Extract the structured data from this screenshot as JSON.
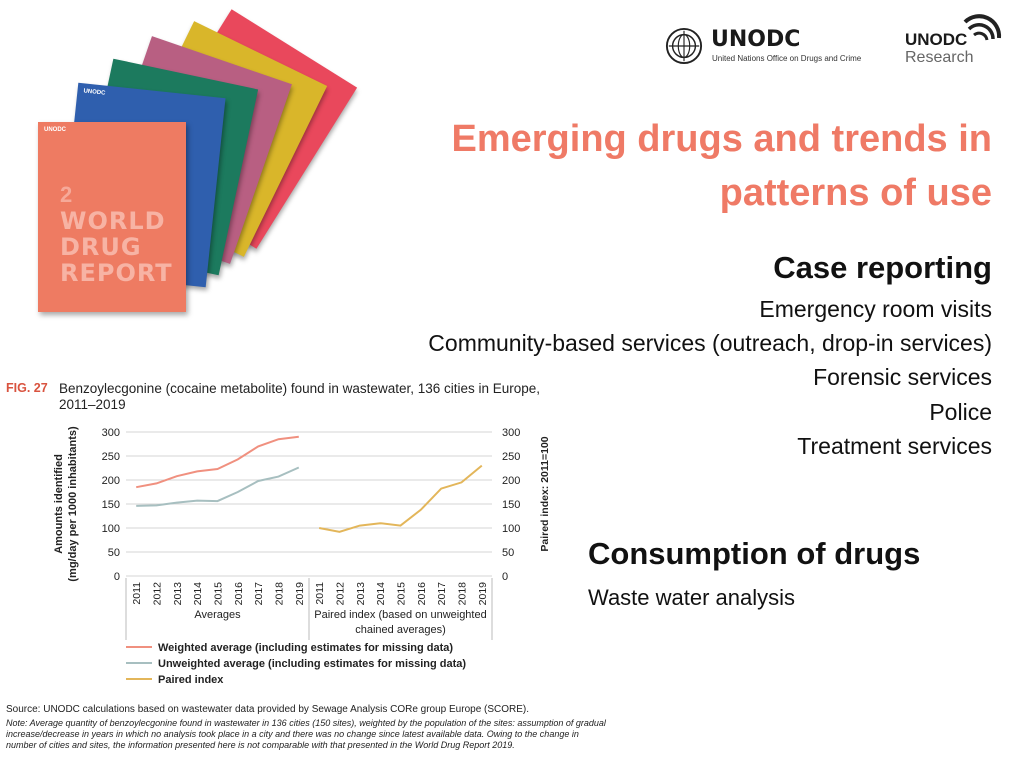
{
  "covers": {
    "tab_label": "UNODC",
    "front": {
      "number": "2",
      "lines": [
        "WORLD",
        "DRUG",
        "REPORT"
      ]
    },
    "colors": [
      "#e9485c",
      "#d9b62a",
      "#b85f82",
      "#1c7a5e",
      "#2f5fae",
      "#ee7b62"
    ]
  },
  "logos": {
    "unodc": {
      "name": "UNODC",
      "subtitle": "United Nations Office on Drugs and Crime",
      "icon": "un-emblem-icon"
    },
    "research": {
      "top": "UNODC",
      "bottom": "Research",
      "icon": "research-arc-icon"
    }
  },
  "title": {
    "line1": "Emerging drugs and trends in",
    "line2": "patterns of use"
  },
  "case_reporting": {
    "heading": "Case reporting",
    "items": [
      "Emergency room visits",
      "Community-based services (outreach, drop-in services)",
      "Forensic services",
      "Police",
      "Treatment services"
    ]
  },
  "consumption": {
    "heading": "Consumption of drugs",
    "sub": "Waste water analysis"
  },
  "figure": {
    "label": "FIG. 27",
    "caption": "Benzoylecgonine (cocaine metabolite) found in wastewater, 136 cities in Europe, 2011–2019",
    "source": "Source: UNODC calculations based on wastewater data provided by Sewage Analysis CORe group Europe (SCORE).",
    "note": "Note: Average quantity of benzoylecgonine found in wastewater in 136 cities (150 sites), weighted by the population of the sites: assumption of gradual increase/decrease in years in which no analysis took place in a city and there was no change since latest available data. Owing to the change in number of cities and sites, the information presented here is not comparable with that presented in the World Drug Report 2019."
  },
  "chart_data": {
    "type": "line",
    "left_axis": {
      "label_line1": "Amounts identified",
      "label_line2": "(mg/day per 1000 inhabitants)",
      "ylim": [
        0,
        300
      ],
      "ticks": [
        0,
        50,
        100,
        150,
        200,
        250,
        300
      ]
    },
    "right_axis": {
      "label": "Paired index: 2011=100",
      "ylim": [
        0,
        300
      ],
      "ticks": [
        0,
        50,
        100,
        150,
        200,
        250,
        300
      ]
    },
    "groups": [
      {
        "label": "Averages",
        "categories": [
          "2011",
          "2012",
          "2013",
          "2014",
          "2015",
          "2016",
          "2017",
          "2018",
          "2019"
        ]
      },
      {
        "label_line1": "Paired index (based on unweighted",
        "label_line2": "chained averages)",
        "categories": [
          "2011",
          "2012",
          "2013",
          "2014",
          "2015",
          "2016",
          "2017",
          "2018",
          "2019"
        ]
      }
    ],
    "series": [
      {
        "name": "Weighted average (including estimates for missing data)",
        "group": 0,
        "color": "#f0907f",
        "values": [
          185,
          193,
          208,
          218,
          223,
          243,
          270,
          285,
          290
        ]
      },
      {
        "name": "Unweighted average (including estimates for missing data)",
        "group": 0,
        "color": "#a7bfc0",
        "values": [
          146,
          147,
          153,
          157,
          156,
          175,
          198,
          207,
          226
        ]
      },
      {
        "name": "Paired index",
        "group": 1,
        "color": "#e3b65a",
        "values": [
          100,
          92,
          105,
          110,
          105,
          138,
          182,
          195,
          230
        ]
      }
    ],
    "grid": true,
    "legend_position": "bottom-left"
  }
}
